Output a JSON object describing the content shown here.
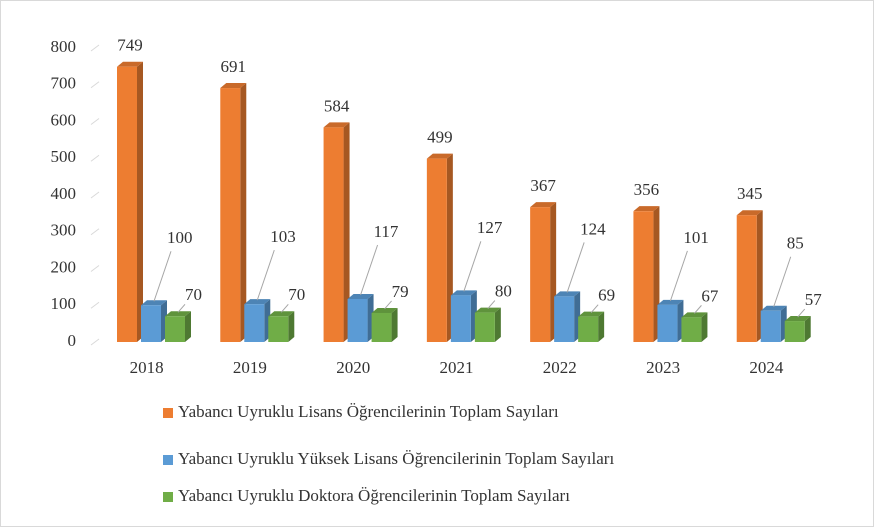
{
  "chart_data": {
    "type": "bar3d",
    "categories": [
      "2018",
      "2019",
      "2020",
      "2021",
      "2022",
      "2023",
      "2024"
    ],
    "series": [
      {
        "name": "Yabancı Uyruklu Lisans Öğrencilerinin Toplam Sayıları",
        "color": "#ED7D31",
        "values": [
          749,
          691,
          584,
          499,
          367,
          356,
          345
        ]
      },
      {
        "name": "Yabancı Uyruklu Yüksek Lisans Öğrencilerinin Toplam Sayıları",
        "color": "#5B9BD5",
        "values": [
          100,
          103,
          117,
          127,
          124,
          101,
          85
        ]
      },
      {
        "name": "Yabancı Uyruklu Doktora Öğrencilerinin Toplam Sayıları",
        "color": "#70AD47",
        "values": [
          70,
          70,
          79,
          80,
          69,
          67,
          57
        ]
      }
    ],
    "ylim": [
      0,
      800
    ],
    "yticks": [
      0,
      100,
      200,
      300,
      400,
      500,
      600,
      700,
      800
    ],
    "grid": false,
    "legend": "bottom"
  }
}
